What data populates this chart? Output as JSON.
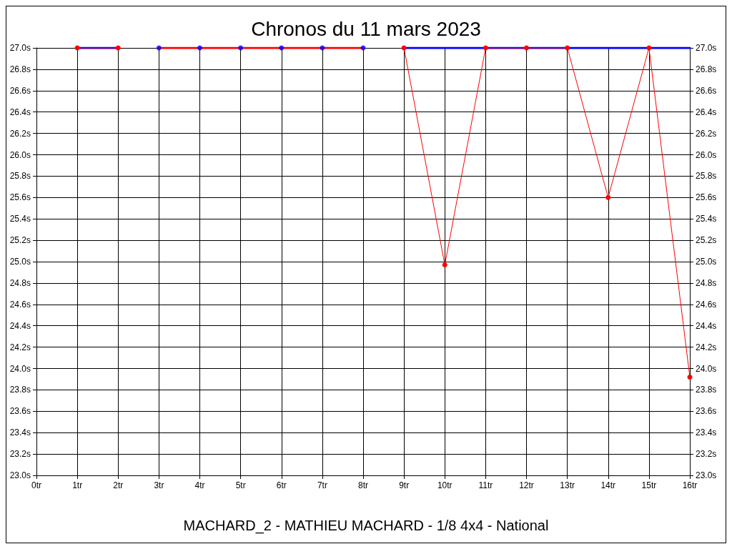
{
  "chart_data": {
    "type": "line",
    "title": "Chronos du 11 mars 2023",
    "annotations": [
      "MACHARD_2 - MATHIEU MACHARD - 1/8 4x4 - National"
    ],
    "x": [
      1,
      2,
      3,
      4,
      5,
      6,
      7,
      8,
      9,
      10,
      11,
      12,
      13,
      14,
      15,
      16
    ],
    "series": [
      {
        "color": "#0000ff",
        "marker": "none",
        "values": [
          27,
          27,
          null,
          null,
          null,
          null,
          null,
          null,
          27,
          27,
          27,
          27,
          27,
          27,
          27,
          27
        ]
      },
      {
        "color": "#ff0000",
        "marker": "none",
        "values": [
          null,
          null,
          27,
          27,
          27,
          27,
          27,
          27,
          null,
          null,
          null,
          null,
          null,
          null,
          null,
          null
        ]
      },
      {
        "color": "#ff0000",
        "marker": "circle",
        "values": [
          27,
          27,
          null,
          null,
          null,
          null,
          null,
          null,
          27,
          24.97,
          27,
          27,
          27,
          25.6,
          27,
          23.92
        ]
      },
      {
        "type": "scatter",
        "color": "#0000ff",
        "marker": "circle",
        "values": [
          null,
          null,
          27,
          27,
          27,
          27,
          27,
          27,
          null,
          null,
          null,
          null,
          null,
          null,
          null,
          null
        ]
      }
    ],
    "xlim": [
      0,
      16
    ],
    "xticks": [
      {
        "value": 0,
        "label": "0tr"
      },
      {
        "value": 1,
        "label": "1tr"
      },
      {
        "value": 2,
        "label": "2tr"
      },
      {
        "value": 3,
        "label": "3tr"
      },
      {
        "value": 4,
        "label": "4tr"
      },
      {
        "value": 5,
        "label": "5tr"
      },
      {
        "value": 6,
        "label": "6tr"
      },
      {
        "value": 7,
        "label": "7tr"
      },
      {
        "value": 8,
        "label": "8tr"
      },
      {
        "value": 9,
        "label": "9tr"
      },
      {
        "value": 10,
        "label": "10tr"
      },
      {
        "value": 11,
        "label": "11tr"
      },
      {
        "value": 12,
        "label": "12tr"
      },
      {
        "value": 13,
        "label": "13tr"
      },
      {
        "value": 14,
        "label": "14tr"
      },
      {
        "value": 15,
        "label": "15tr"
      },
      {
        "value": 16,
        "label": "16tr"
      }
    ],
    "ylim": [
      23,
      27
    ],
    "yticks": [
      {
        "value": 23,
        "label": "23.0s"
      },
      {
        "value": 23.2,
        "label": "23.2s"
      },
      {
        "value": 23.4,
        "label": "23.4s"
      },
      {
        "value": 23.6,
        "label": "23.6s"
      },
      {
        "value": 23.8,
        "label": "23.8s"
      },
      {
        "value": 24,
        "label": "24.0s"
      },
      {
        "value": 24.2,
        "label": "24.2s"
      },
      {
        "value": 24.4,
        "label": "24.4s"
      },
      {
        "value": 24.6,
        "label": "24.6s"
      },
      {
        "value": 24.8,
        "label": "24.8s"
      },
      {
        "value": 25,
        "label": "25.0s"
      },
      {
        "value": 25.2,
        "label": "25.2s"
      },
      {
        "value": 25.4,
        "label": "25.4s"
      },
      {
        "value": 25.6,
        "label": "25.6s"
      },
      {
        "value": 25.8,
        "label": "25.8s"
      },
      {
        "value": 26,
        "label": "26.0s"
      },
      {
        "value": 26.2,
        "label": "26.2s"
      },
      {
        "value": 26.4,
        "label": "26.4s"
      },
      {
        "value": 26.6,
        "label": "26.6s"
      },
      {
        "value": 26.8,
        "label": "26.8s"
      },
      {
        "value": 27,
        "label": "27.0s"
      }
    ],
    "y2lim": [
      23,
      27
    ],
    "y2ticks": [
      {
        "value": 23,
        "label": "23.0s"
      },
      {
        "value": 23.2,
        "label": "23.2s"
      },
      {
        "value": 23.4,
        "label": "23.4s"
      },
      {
        "value": 23.6,
        "label": "23.6s"
      },
      {
        "value": 23.8,
        "label": "23.8s"
      },
      {
        "value": 24,
        "label": "24.0s"
      },
      {
        "value": 24.2,
        "label": "24.2s"
      },
      {
        "value": 24.4,
        "label": "24.4s"
      },
      {
        "value": 24.6,
        "label": "24.6s"
      },
      {
        "value": 24.8,
        "label": "24.8s"
      },
      {
        "value": 25,
        "label": "25.0s"
      },
      {
        "value": 25.2,
        "label": "25.2s"
      },
      {
        "value": 25.4,
        "label": "25.4s"
      },
      {
        "value": 25.6,
        "label": "25.6s"
      },
      {
        "value": 25.8,
        "label": "25.8s"
      },
      {
        "value": 26,
        "label": "26.0s"
      },
      {
        "value": 26.2,
        "label": "26.2s"
      },
      {
        "value": 26.4,
        "label": "26.4s"
      },
      {
        "value": 26.6,
        "label": "26.6s"
      },
      {
        "value": 26.8,
        "label": "26.8s"
      },
      {
        "value": 27,
        "label": "27.0s"
      }
    ],
    "grid": true
  }
}
